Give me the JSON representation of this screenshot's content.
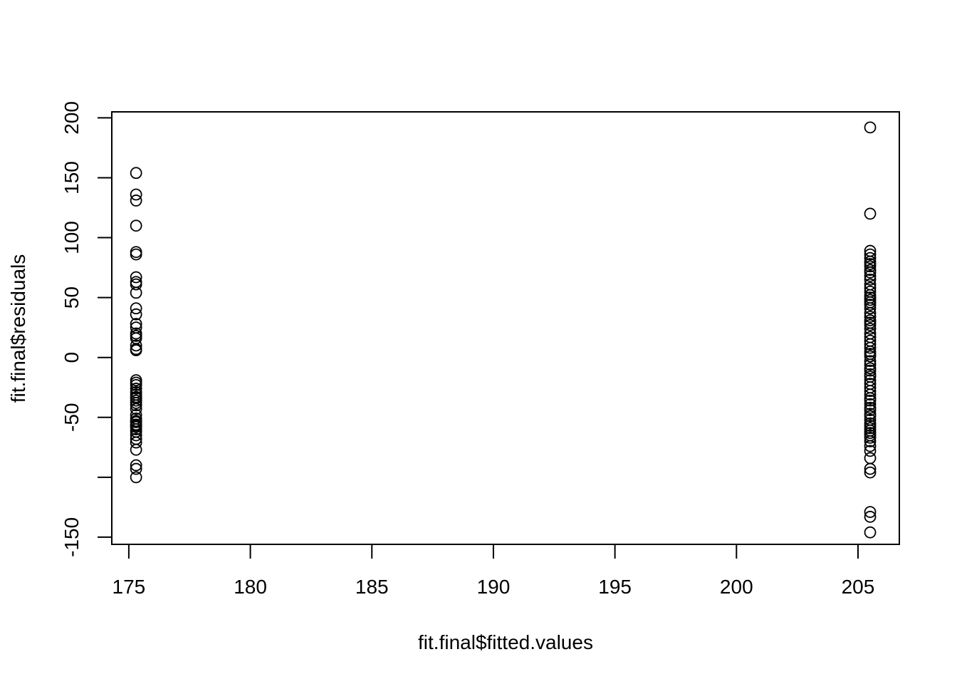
{
  "chart_data": {
    "type": "scatter",
    "title": "",
    "xlabel": "fit.final$fitted.values",
    "ylabel": "fit.final$residuals",
    "xlim": [
      174.3,
      206.7
    ],
    "ylim": [
      -156,
      205
    ],
    "x_ticks": [
      175,
      180,
      185,
      190,
      195,
      200,
      205
    ],
    "x_tick_labels": [
      "175",
      "180",
      "185",
      "190",
      "195",
      "200",
      "205"
    ],
    "y_ticks": [
      -150,
      -100,
      -50,
      0,
      50,
      100,
      150,
      200
    ],
    "y_tick_labels": [
      "-150",
      "",
      "-50",
      "0",
      "50",
      "100",
      "150",
      "200"
    ],
    "grid": false,
    "legend": "none",
    "series": [
      {
        "x": [
          175.3,
          175.3,
          175.3,
          175.3,
          175.3,
          175.3,
          175.3,
          175.3,
          175.3,
          175.3,
          175.3,
          175.3,
          175.3,
          175.3,
          175.3,
          175.3,
          175.3,
          175.3,
          175.3,
          175.3,
          175.3,
          175.3,
          175.3,
          175.3,
          175.3,
          175.3,
          175.3,
          175.3,
          175.3,
          175.3,
          175.3,
          175.3,
          175.3,
          175.3,
          175.3,
          175.3,
          175.3,
          175.3,
          175.3,
          175.3,
          175.3,
          175.3,
          175.3,
          175.3,
          175.3,
          175.3,
          175.3,
          175.3
        ],
        "y": [
          154,
          136,
          131,
          110,
          88,
          86,
          67,
          63,
          61,
          54,
          41,
          36,
          28,
          25,
          20,
          18,
          16,
          10,
          7,
          6,
          -19,
          -21,
          -23,
          -26,
          -31,
          -34,
          -36,
          -38,
          -40,
          -43,
          -48,
          -51,
          -54,
          -56,
          -58,
          -60,
          -62,
          -68,
          -71,
          -77,
          -90,
          -93,
          -100,
          -33,
          -29,
          -53,
          -57,
          -65
        ],
        "marker": "open-circle",
        "color": "#000000"
      },
      {
        "x": [
          205.5,
          205.5,
          205.5,
          205.5,
          205.5,
          205.5,
          205.5,
          205.5,
          205.5,
          205.5,
          205.5,
          205.5,
          205.5,
          205.5,
          205.5,
          205.5,
          205.5,
          205.5,
          205.5,
          205.5,
          205.5,
          205.5,
          205.5,
          205.5,
          205.5,
          205.5,
          205.5,
          205.5,
          205.5,
          205.5,
          205.5,
          205.5,
          205.5,
          205.5,
          205.5,
          205.5,
          205.5,
          205.5,
          205.5,
          205.5,
          205.5,
          205.5,
          205.5,
          205.5,
          205.5,
          205.5,
          205.5,
          205.5,
          205.5,
          205.5,
          205.5,
          205.5,
          205.5,
          205.5,
          205.5,
          205.5,
          205.5,
          205.5,
          205.5,
          205.5,
          205.5,
          205.5,
          205.5,
          205.5,
          205.5,
          205.5,
          205.5,
          205.5,
          205.5,
          205.5
        ],
        "y": [
          192,
          120,
          89,
          86,
          83,
          80,
          78,
          76,
          73,
          71,
          68,
          65,
          61,
          58,
          55,
          52,
          50,
          48,
          46,
          44,
          41,
          37,
          34,
          31,
          29,
          27,
          24,
          20,
          17,
          14,
          11,
          8,
          5,
          3,
          1,
          -3,
          -6,
          -9,
          -11,
          -14,
          -16,
          -19,
          -22,
          -25,
          -28,
          -31,
          -34,
          -36,
          -39,
          -42,
          -44,
          -47,
          -49,
          -52,
          -55,
          -57,
          -59,
          -61,
          -63,
          -65,
          -67,
          -70,
          -74,
          -78,
          -84,
          -93,
          -96,
          -129,
          -133,
          -146
        ],
        "marker": "open-circle",
        "color": "#000000"
      }
    ]
  }
}
